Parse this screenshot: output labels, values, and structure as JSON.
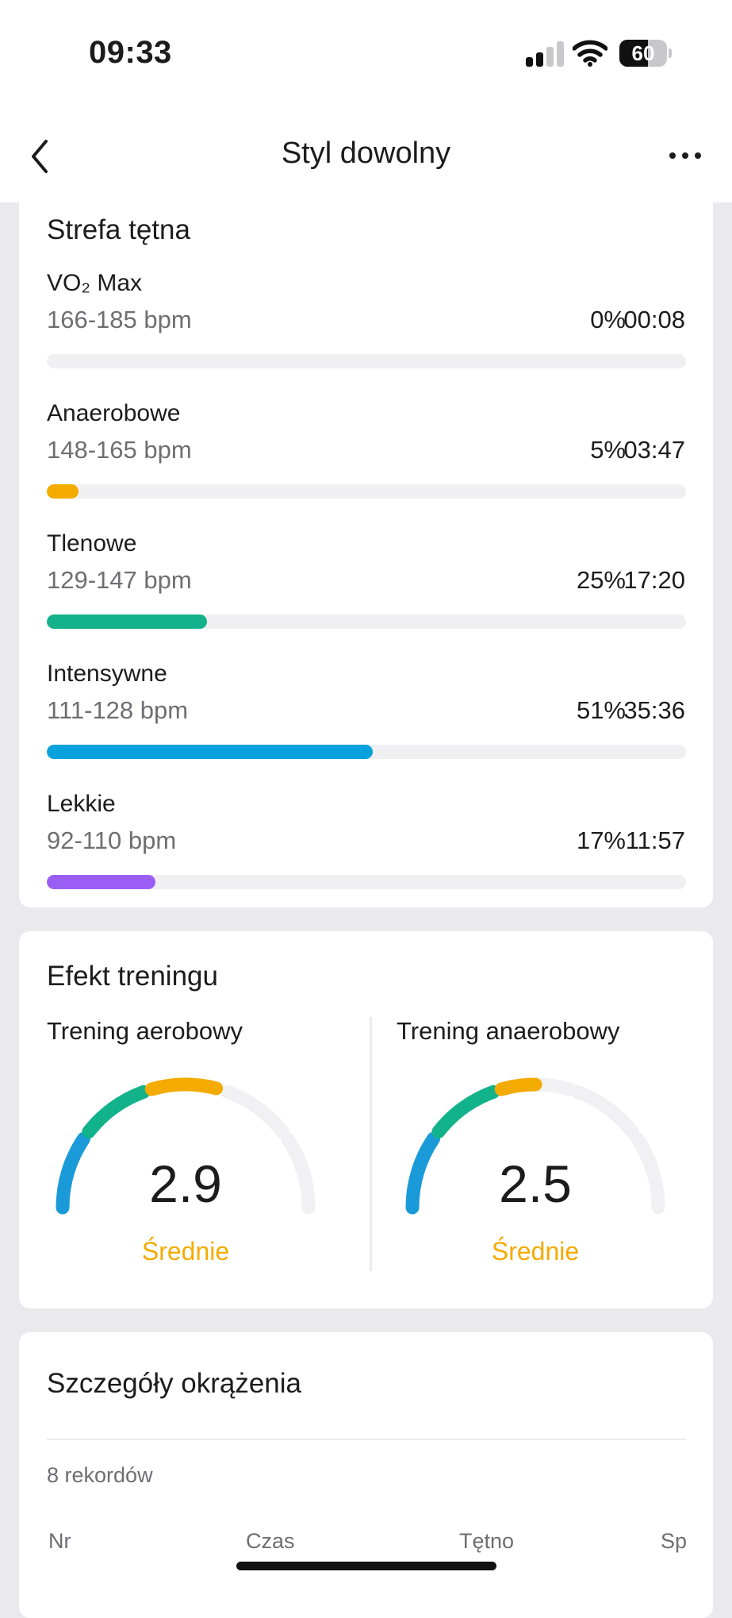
{
  "status_bar": {
    "time": "09:33",
    "battery_text": "60",
    "battery_level": 0.6,
    "signal_bars_active": 2,
    "signal_bars_total": 4
  },
  "nav": {
    "back_icon": "chevron-left-icon",
    "title": "Styl dowolny",
    "more_icon": "ellipsis-icon"
  },
  "heart_zones": {
    "title": "Strefa tętna",
    "zones": [
      {
        "name": "VO₂ Max",
        "range": "166-185 bpm",
        "percent_label": "0%",
        "time": "00:08",
        "fraction": 0.0,
        "color": "#a98bf0"
      },
      {
        "name": "Anaerobowe",
        "range": "148-165 bpm",
        "percent_label": "5%",
        "time": "03:47",
        "fraction": 0.05,
        "color": "#f4ab00"
      },
      {
        "name": "Tlenowe",
        "range": "129-147 bpm",
        "percent_label": "25%",
        "time": "17:20",
        "fraction": 0.25,
        "color": "#12b38a"
      },
      {
        "name": "Intensywne",
        "range": "111-128 bpm",
        "percent_label": "51%",
        "time": "35:36",
        "fraction": 0.51,
        "color": "#0aa2dc"
      },
      {
        "name": "Lekkie",
        "range": "92-110 bpm",
        "percent_label": "17%",
        "time": "11:57",
        "fraction": 0.17,
        "color": "#9b5ef5"
      }
    ]
  },
  "training_effect": {
    "title": "Efekt treningu",
    "aerobic": {
      "label": "Trening aerobowy",
      "value": "2.9",
      "level": "Średnie",
      "score": 2.9
    },
    "anaerobic": {
      "label": "Trening anaerobowy",
      "value": "2.5",
      "level": "Średnie",
      "score": 2.5
    },
    "colors": {
      "low": "#1a9ad9",
      "mid": "#12b38a",
      "high": "#f4ab00",
      "track": "#f1f1f3"
    }
  },
  "laps": {
    "title": "Szczegóły okrążenia",
    "records": "8 rekordów",
    "columns": [
      "Nr",
      "Czas",
      "Tętno",
      "Sp"
    ]
  }
}
